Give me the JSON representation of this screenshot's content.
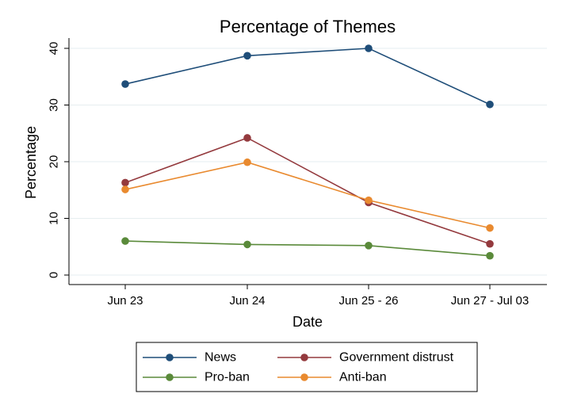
{
  "chart_data": {
    "type": "line",
    "title": "Percentage of Themes",
    "xlabel": "Date",
    "ylabel": "Percentage",
    "categories": [
      "Jun 23",
      "Jun 24",
      "Jun 25 - 26",
      "Jun 27 - Jul 03"
    ],
    "ylim": [
      0,
      40
    ],
    "yticks": [
      0,
      10,
      20,
      30,
      40
    ],
    "grid": true,
    "legend_position": "bottom",
    "series": [
      {
        "name": "News",
        "color": "#1f4e79",
        "values": [
          33.7,
          38.7,
          40.0,
          30.1
        ]
      },
      {
        "name": "Government distrust",
        "color": "#943a3e",
        "values": [
          16.3,
          24.2,
          12.8,
          5.5
        ]
      },
      {
        "name": "Pro-ban",
        "color": "#5a8a3a",
        "values": [
          6.0,
          5.4,
          5.2,
          3.4
        ]
      },
      {
        "name": "Anti-ban",
        "color": "#e98a2f",
        "values": [
          15.1,
          19.9,
          13.2,
          8.3
        ]
      }
    ]
  }
}
